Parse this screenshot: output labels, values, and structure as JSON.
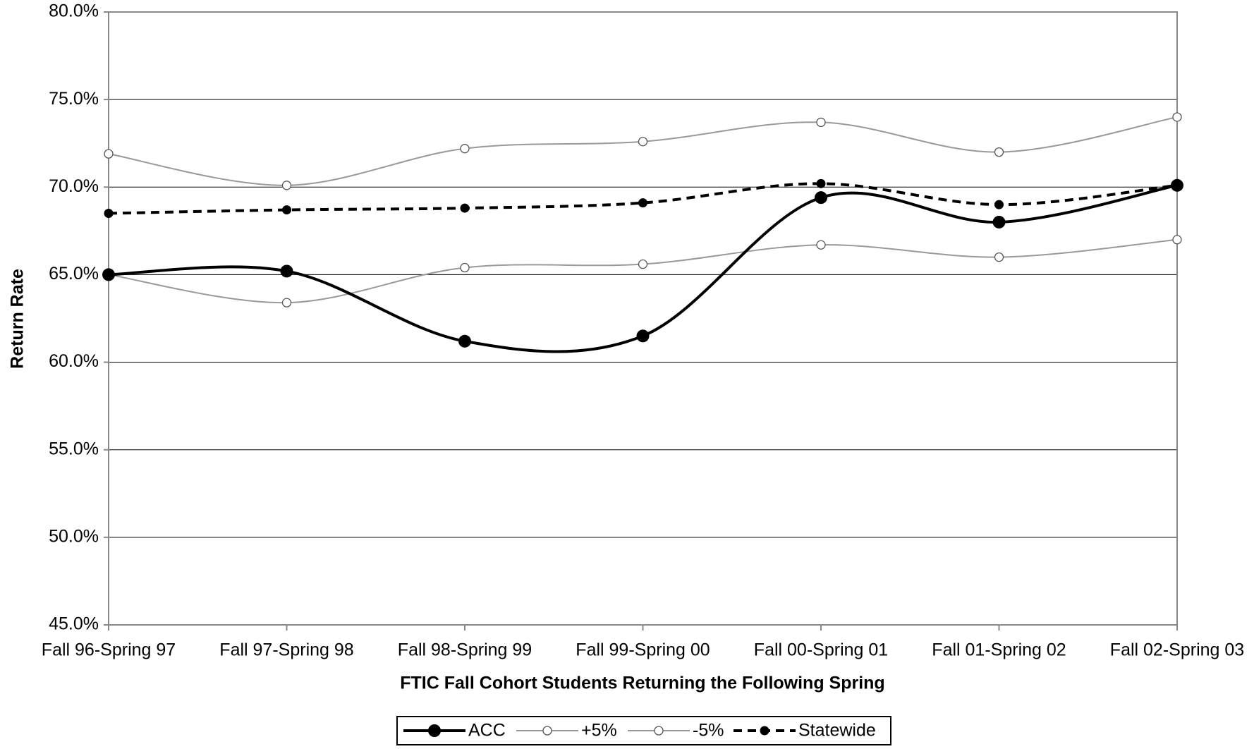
{
  "chart_data": {
    "type": "line",
    "x_label": "FTIC Fall Cohort Students Returning the Following Spring",
    "y_label": "Return Rate",
    "categories": [
      "Fall 96-Spring 97",
      "Fall 97-Spring 98",
      "Fall 98-Spring 99",
      "Fall 99-Spring 00",
      "Fall 00-Spring 01",
      "Fall 01-Spring 02",
      "Fall 02-Spring 03"
    ],
    "series": [
      {
        "name": "ACC",
        "color": "#000000",
        "line_style": "solid",
        "marker": "filled",
        "values": [
          65.0,
          65.2,
          61.2,
          61.5,
          69.4,
          68.0,
          70.1
        ]
      },
      {
        "name": "+5%",
        "color": "#999999",
        "line_style": "solid",
        "marker": "hollow",
        "values": [
          71.9,
          70.1,
          72.2,
          72.6,
          73.7,
          72.0,
          74.0
        ]
      },
      {
        "name": "-5%",
        "color": "#999999",
        "line_style": "solid",
        "marker": "hollow",
        "values": [
          65.0,
          63.4,
          65.4,
          65.6,
          66.7,
          66.0,
          67.0
        ]
      },
      {
        "name": "Statewide",
        "color": "#000000",
        "line_style": "dashed",
        "marker": "filled",
        "values": [
          68.5,
          68.7,
          68.8,
          69.1,
          70.2,
          69.0,
          70.1
        ]
      }
    ],
    "ylim": [
      45,
      80
    ],
    "yticks": [
      {
        "value": 45,
        "label": "45.0%"
      },
      {
        "value": 50,
        "label": "50.0%"
      },
      {
        "value": 55,
        "label": "55.0%"
      },
      {
        "value": 60,
        "label": "60.0%"
      },
      {
        "value": 65,
        "label": "65.0%"
      },
      {
        "value": 70,
        "label": "70.0%"
      },
      {
        "value": 75,
        "label": "75.0%"
      },
      {
        "value": 80,
        "label": "80.0%"
      }
    ],
    "grid": true,
    "smooth": true,
    "legend_position": "bottom"
  }
}
